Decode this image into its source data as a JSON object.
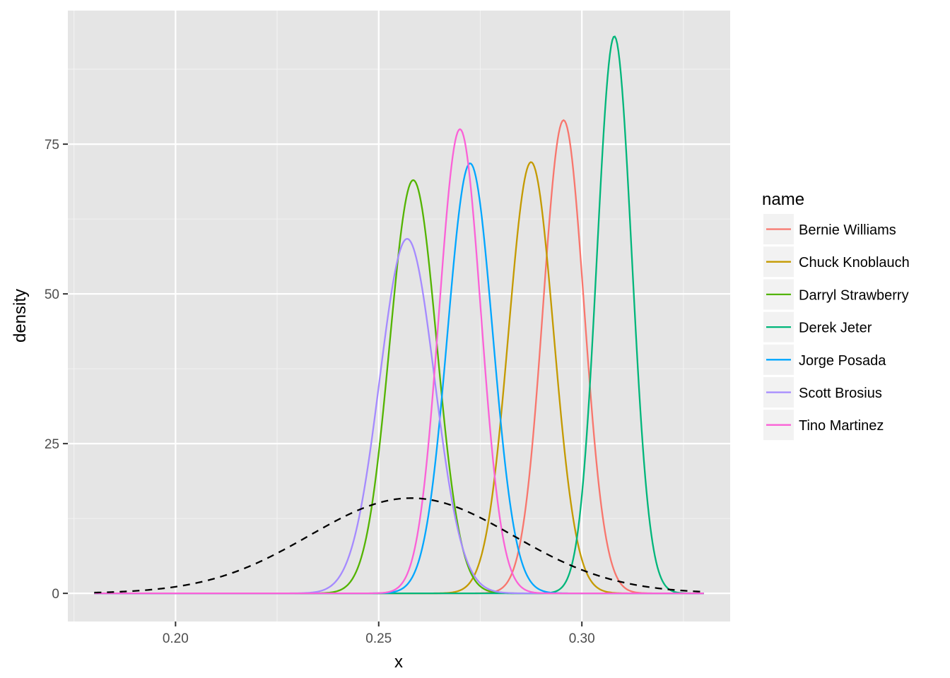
{
  "chart_data": {
    "type": "line",
    "title": "",
    "xlabel": "x",
    "ylabel": "density",
    "xlim": [
      0.1735,
      0.3365
    ],
    "ylim": [
      -4.7,
      97.3
    ],
    "x_ticks": [
      {
        "value": 0.2,
        "label": "0.20"
      },
      {
        "value": 0.25,
        "label": "0.25"
      },
      {
        "value": 0.3,
        "label": "0.30"
      }
    ],
    "y_ticks": [
      {
        "value": 0,
        "label": "0"
      },
      {
        "value": 25,
        "label": "25"
      },
      {
        "value": 50,
        "label": "50"
      },
      {
        "value": 75,
        "label": "75"
      }
    ],
    "x_minor_breaks": [
      0.175,
      0.225,
      0.275,
      0.325
    ],
    "y_minor_breaks": [
      12.5,
      37.5,
      62.5,
      87.5
    ],
    "x_range": [
      0.18,
      0.33
    ],
    "grid": true,
    "panel_background": "#e5e5e5",
    "legend": {
      "title": "name",
      "position": "right"
    },
    "series": [
      {
        "name": "Bernie Williams",
        "color": "#F8766D",
        "peak_x": 0.2955,
        "peak_y": 79.0,
        "style": "solid"
      },
      {
        "name": "Chuck Knoblauch",
        "color": "#C49A00",
        "peak_x": 0.2875,
        "peak_y": 72.0,
        "style": "solid"
      },
      {
        "name": "Darryl Strawberry",
        "color": "#53B400",
        "peak_x": 0.2585,
        "peak_y": 69.0,
        "style": "solid"
      },
      {
        "name": "Derek Jeter",
        "color": "#00B67A",
        "peak_x": 0.308,
        "peak_y": 93.0,
        "style": "solid"
      },
      {
        "name": "Jorge Posada",
        "color": "#00A6FF",
        "peak_x": 0.2725,
        "peak_y": 71.8,
        "style": "solid"
      },
      {
        "name": "Scott Brosius",
        "color": "#A58AFF",
        "peak_x": 0.257,
        "peak_y": 59.2,
        "style": "solid"
      },
      {
        "name": "Tino Martinez",
        "color": "#FB61D7",
        "peak_x": 0.27,
        "peak_y": 77.5,
        "style": "solid"
      }
    ],
    "prior": {
      "color": "#000000",
      "peak_x": 0.258,
      "peak_y": 15.9,
      "style": "dashed"
    }
  }
}
